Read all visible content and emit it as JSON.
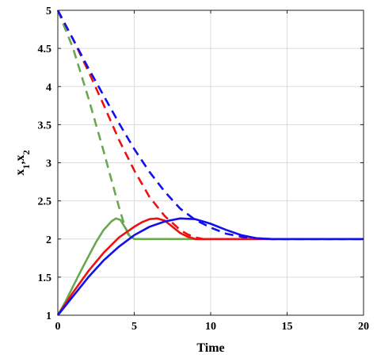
{
  "chart_data": {
    "type": "line",
    "title": "",
    "xlabel": "Time",
    "ylabel": "x",
    "ylabel_subs": [
      "1",
      "2"
    ],
    "xlim": [
      0,
      20
    ],
    "ylim": [
      1,
      5
    ],
    "x_ticks": [
      0,
      5,
      10,
      15,
      20
    ],
    "y_ticks": [
      1,
      1.5,
      2,
      2.5,
      3,
      3.5,
      4,
      4.5,
      5
    ],
    "x_tick_labels": [
      "0",
      "5",
      "10",
      "15",
      "20"
    ],
    "y_tick_labels": [
      "1",
      "1.5",
      "2",
      "2.5",
      "3",
      "3.5",
      "4",
      "4.5",
      "5"
    ],
    "grid": true,
    "series": [
      {
        "color": "#6aa84f",
        "style": "solid",
        "x": [
          0,
          0.5,
          1,
          1.5,
          2,
          2.5,
          3,
          3.5,
          3.8,
          4.1,
          4.4,
          4.7,
          5,
          6,
          8,
          10
        ],
        "y": [
          1,
          1.18,
          1.38,
          1.58,
          1.77,
          1.96,
          2.12,
          2.23,
          2.27,
          2.25,
          2.15,
          2.04,
          2.0,
          2.0,
          2.0,
          2.0
        ]
      },
      {
        "color": "#6aa84f",
        "style": "dashed",
        "x": [
          0,
          1,
          2,
          3,
          3.5,
          4,
          4.3,
          4.6,
          5
        ],
        "y": [
          5,
          4.5,
          3.85,
          3.15,
          2.78,
          2.42,
          2.22,
          2.06,
          2.0
        ]
      },
      {
        "color": "#ee1111",
        "style": "solid",
        "x": [
          0,
          1,
          2,
          3,
          4,
          5,
          5.5,
          6,
          6.5,
          7,
          7.5,
          8,
          8.5,
          9,
          9.5,
          12,
          20
        ],
        "y": [
          1,
          1.3,
          1.58,
          1.82,
          2.02,
          2.16,
          2.22,
          2.26,
          2.27,
          2.24,
          2.16,
          2.08,
          2.03,
          2.0,
          2.0,
          2.0,
          2.0
        ]
      },
      {
        "color": "#ee1111",
        "style": "dashed",
        "x": [
          0,
          1,
          2,
          3,
          4,
          5,
          6,
          7,
          8,
          8.5,
          9,
          9.5,
          10
        ],
        "y": [
          5,
          4.62,
          4.2,
          3.76,
          3.3,
          2.9,
          2.55,
          2.3,
          2.12,
          2.06,
          2.02,
          2.0,
          2.0
        ],
        "note": ""
      },
      {
        "color": "#1111ee",
        "style": "solid",
        "x": [
          0,
          1,
          2,
          3,
          4,
          5,
          6,
          7,
          8,
          9,
          10,
          11,
          12,
          13,
          14,
          20
        ],
        "y": [
          1,
          1.25,
          1.5,
          1.72,
          1.9,
          2.05,
          2.16,
          2.23,
          2.27,
          2.26,
          2.2,
          2.12,
          2.05,
          2.01,
          2.0,
          2.0
        ]
      },
      {
        "color": "#1111ee",
        "style": "dashed",
        "x": [
          0,
          1,
          2,
          3,
          4,
          5,
          6,
          7,
          8,
          9,
          10,
          11,
          12,
          13,
          14,
          20
        ],
        "y": [
          5,
          4.62,
          4.24,
          3.88,
          3.52,
          3.18,
          2.88,
          2.62,
          2.4,
          2.25,
          2.15,
          2.07,
          2.03,
          2.01,
          2.0,
          2.0
        ]
      }
    ]
  }
}
